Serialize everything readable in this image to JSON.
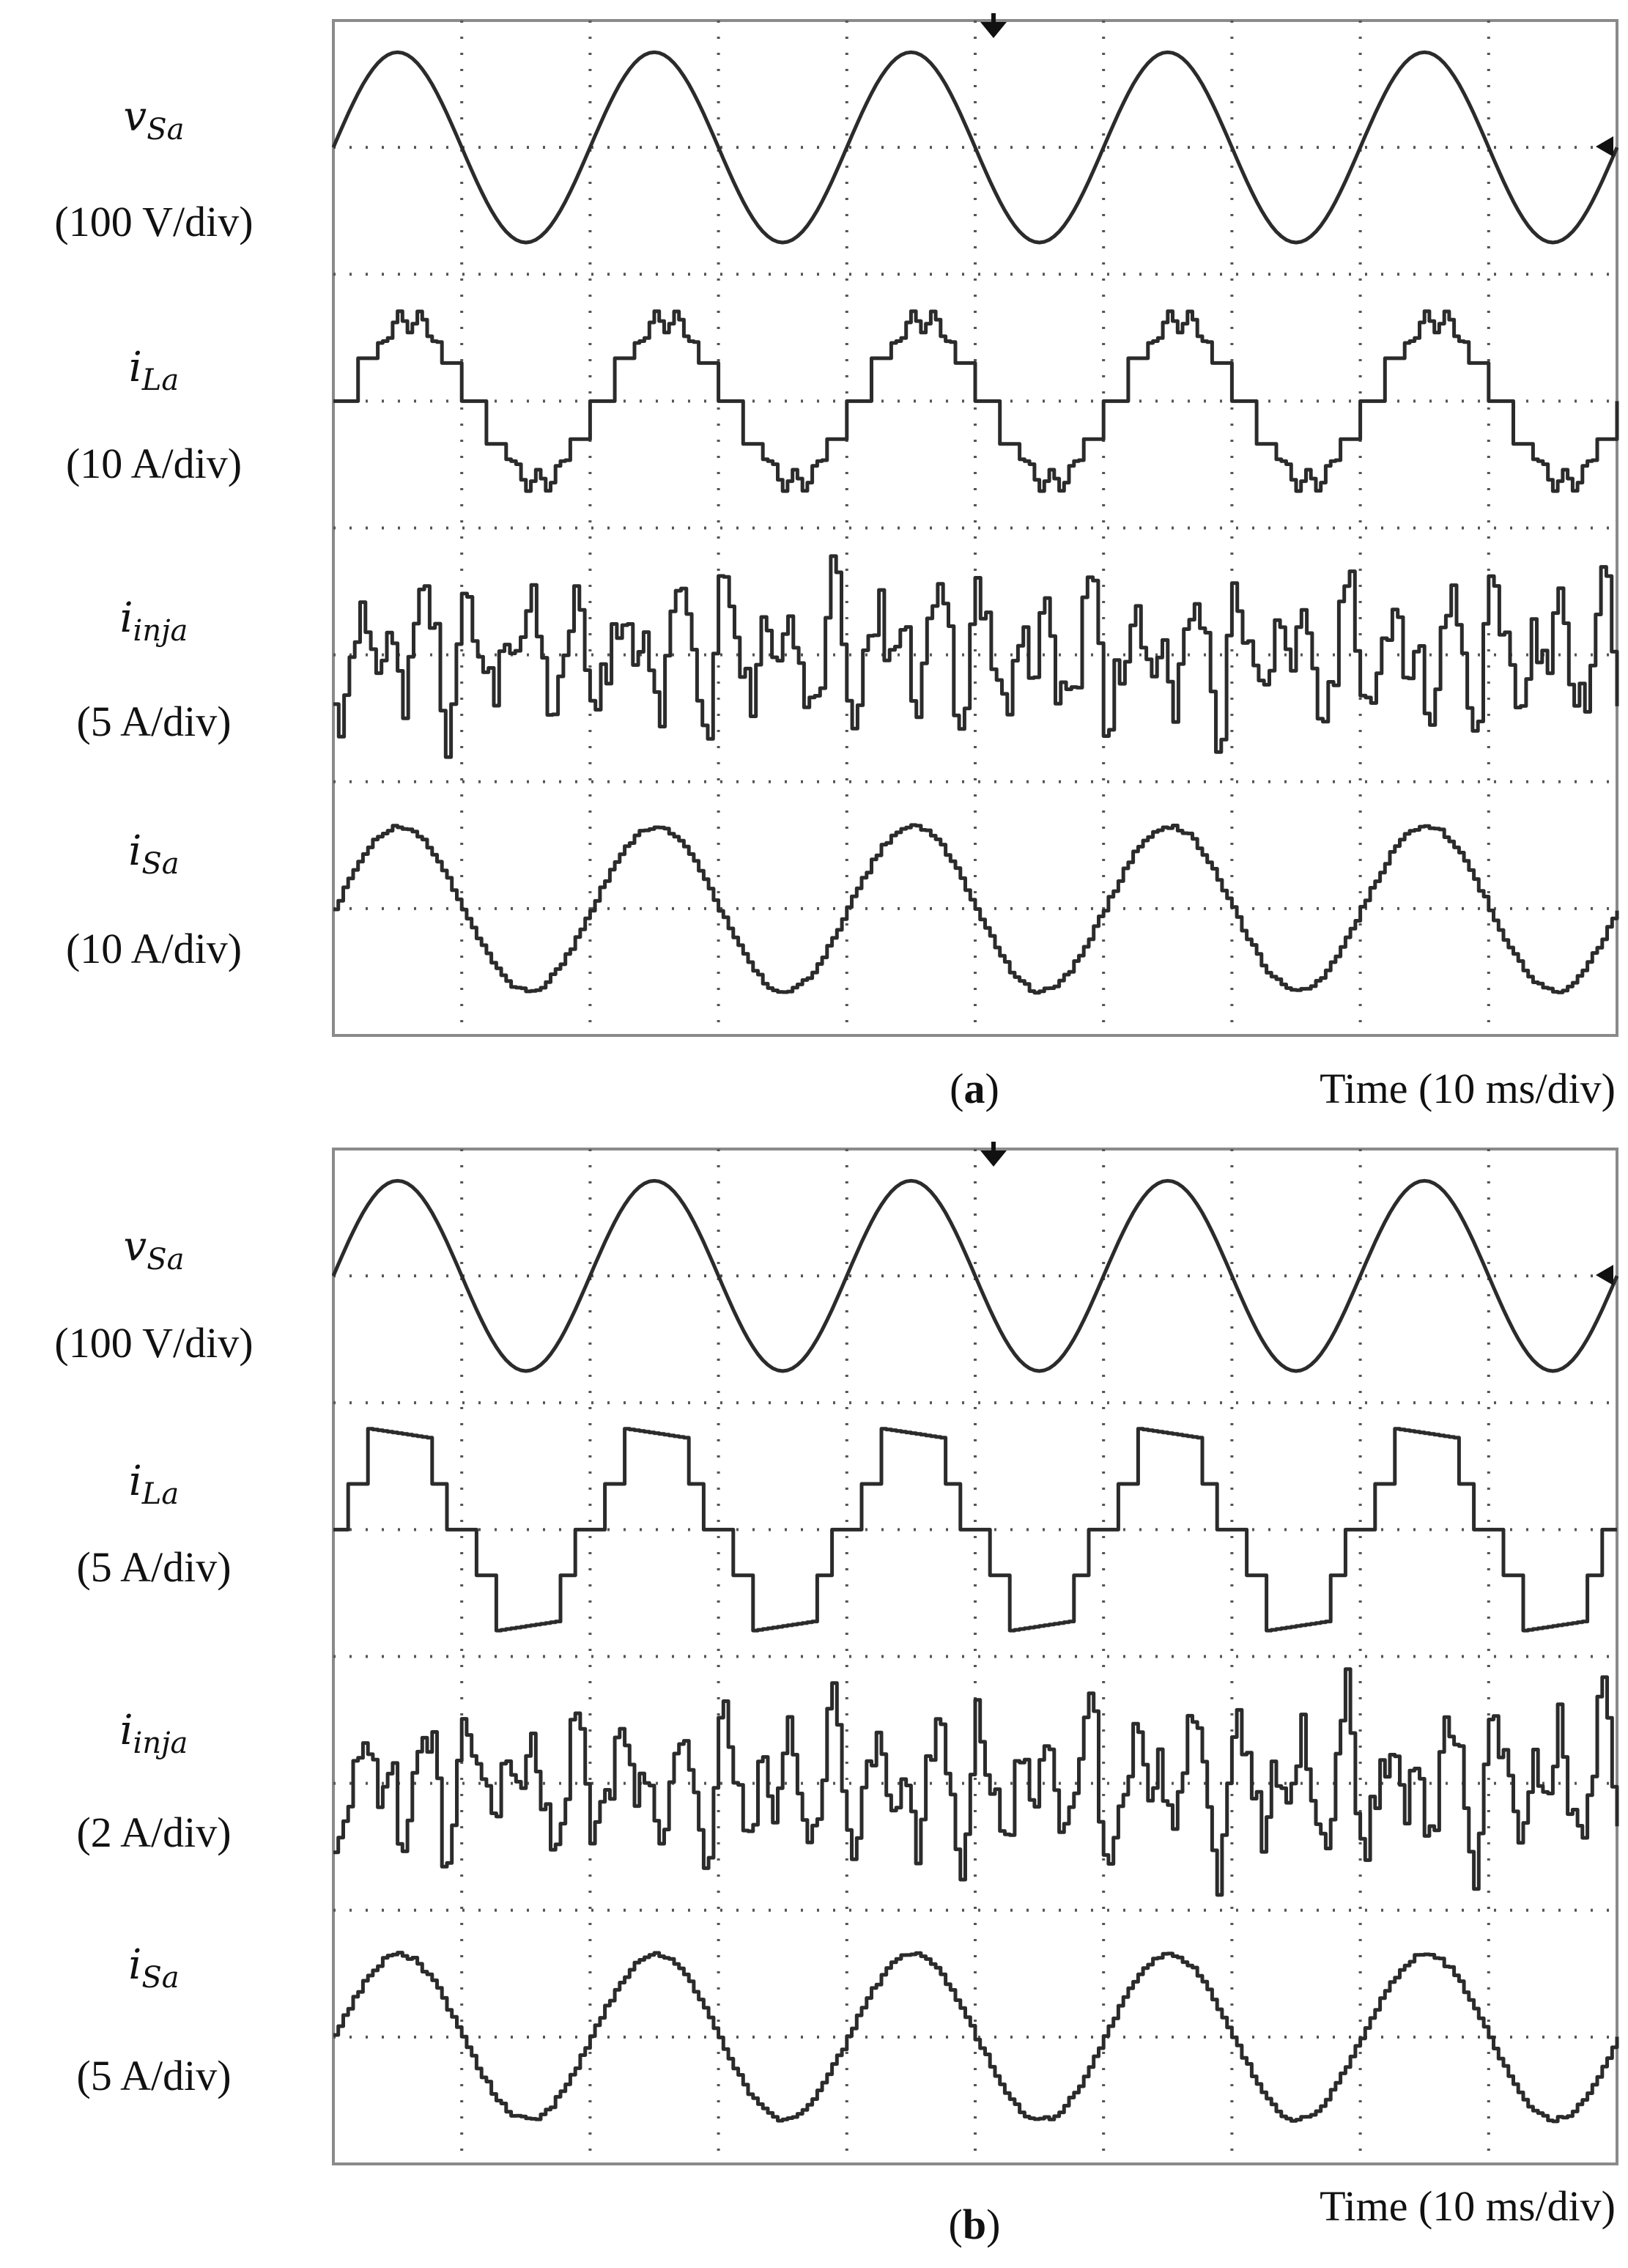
{
  "panels": [
    {
      "id": "a",
      "letter": "a",
      "time_label": "Time (10 ms/div)",
      "traces": [
        {
          "var": "v",
          "sub": "Sa",
          "scale": "(100 V/div)"
        },
        {
          "var": "i",
          "sub": "La",
          "scale": "(10 A/div)"
        },
        {
          "var": "i",
          "sub": "inja",
          "scale": "(5 A/div)"
        },
        {
          "var": "i",
          "sub": "Sa",
          "scale": "(10 A/div)"
        }
      ]
    },
    {
      "id": "b",
      "letter": "b",
      "time_label": "Time (10 ms/div)",
      "traces": [
        {
          "var": "v",
          "sub": "Sa",
          "scale": "(100 V/div)"
        },
        {
          "var": "i",
          "sub": "La",
          "scale": "(5 A/div)"
        },
        {
          "var": "i",
          "sub": "inja",
          "scale": "(2 A/div)"
        },
        {
          "var": "i",
          "sub": "Sa",
          "scale": "(5 A/div)"
        }
      ]
    }
  ],
  "chart_data": [
    {
      "type": "line",
      "panel": "a",
      "x_divisions": 10,
      "y_divisions": 8,
      "x_unit": "div (10 ms/div)",
      "waveform_cycles": 5,
      "series": [
        {
          "name": "vSa",
          "shape": "sine",
          "amplitude_div": 0.75,
          "center_div": 1.0,
          "phase_deg": 0
        },
        {
          "name": "iLa",
          "shape": "six-pulse rectifier current with double hump",
          "amplitude_div": 0.75,
          "center_div": 3.0
        },
        {
          "name": "iinja",
          "shape": "harmonic compensation current",
          "amplitude_div": 0.75,
          "center_div": 5.0
        },
        {
          "name": "iSa",
          "shape": "near-sinusoidal with ripple",
          "amplitude_div": 0.65,
          "center_div": 7.0,
          "phase_deg": 0
        }
      ],
      "trigger_marker": "top arrow at 5.0 div",
      "ground_marker": "right arrow at 1.0 div"
    },
    {
      "type": "line",
      "panel": "b",
      "x_divisions": 10,
      "y_divisions": 8,
      "x_unit": "div (10 ms/div)",
      "waveform_cycles": 5,
      "series": [
        {
          "name": "vSa",
          "shape": "sine",
          "amplitude_div": 0.75,
          "center_div": 1.0,
          "phase_deg": 0
        },
        {
          "name": "iLa",
          "shape": "stepped quasi-square rectifier current",
          "amplitude_div": 0.8,
          "center_div": 3.0
        },
        {
          "name": "iinja",
          "shape": "harmonic compensation current",
          "amplitude_div": 0.75,
          "center_div": 5.0
        },
        {
          "name": "iSa",
          "shape": "near-sinusoidal with ripple",
          "amplitude_div": 0.65,
          "center_div": 7.0,
          "phase_deg": 0
        }
      ],
      "trigger_marker": "top arrow at 5.0 div",
      "ground_marker": "right arrow at 1.0 div"
    }
  ]
}
